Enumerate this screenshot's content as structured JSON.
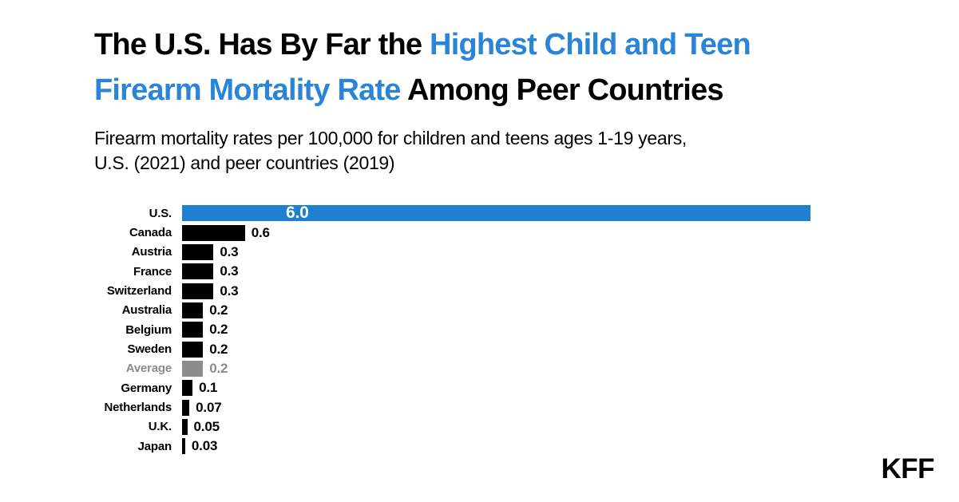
{
  "title": {
    "line1_black": "The U.S. Has By Far the",
    "line1_blue": "Highest Child and Teen",
    "line2_blue": "Firearm Mortality Rate",
    "line2_black": "Among Peer Countries",
    "accent_color": "#2a85d8"
  },
  "subtitle": {
    "line1": "Firearm mortality rates per 100,000 for children and teens ages 1-19 years,",
    "line2": "U.S. (2021) and peer countries (2019)"
  },
  "logo": {
    "text": "KFF"
  },
  "chart_data": {
    "type": "bar",
    "orientation": "horizontal",
    "title": "The U.S. Has By Far the Highest Child and Teen Firearm Mortality Rate Among Peer Countries",
    "subtitle": "Firearm mortality rates per 100,000 for children and teens ages 1-19 years, U.S. (2021) and peer countries (2019)",
    "categories": [
      "U.S.",
      "Canada",
      "Austria",
      "France",
      "Switzerland",
      "Australia",
      "Belgium",
      "Sweden",
      "Average",
      "Germany",
      "Netherlands",
      "U.K.",
      "Japan"
    ],
    "values": [
      6.0,
      0.6,
      0.3,
      0.3,
      0.3,
      0.2,
      0.2,
      0.2,
      0.2,
      0.1,
      0.07,
      0.05,
      0.03
    ],
    "value_labels": [
      "6.0",
      "0.6",
      "0.3",
      "0.3",
      "0.3",
      "0.2",
      "0.2",
      "0.2",
      "0.2",
      "0.1",
      "0.07",
      "0.05",
      "0.03"
    ],
    "bar_colors": [
      "#1f80d2",
      "#000000",
      "#000000",
      "#000000",
      "#000000",
      "#000000",
      "#000000",
      "#000000",
      "#8c8c8c",
      "#000000",
      "#000000",
      "#000000",
      "#000000"
    ],
    "muted_color": "#8c8c8c",
    "muted_category": "Average",
    "inside_label_category": "U.S.",
    "xlabel": "",
    "ylabel": "",
    "xlim": [
      0,
      6.0
    ],
    "grid": false,
    "legend": false,
    "value_label_position": "outside-end"
  }
}
